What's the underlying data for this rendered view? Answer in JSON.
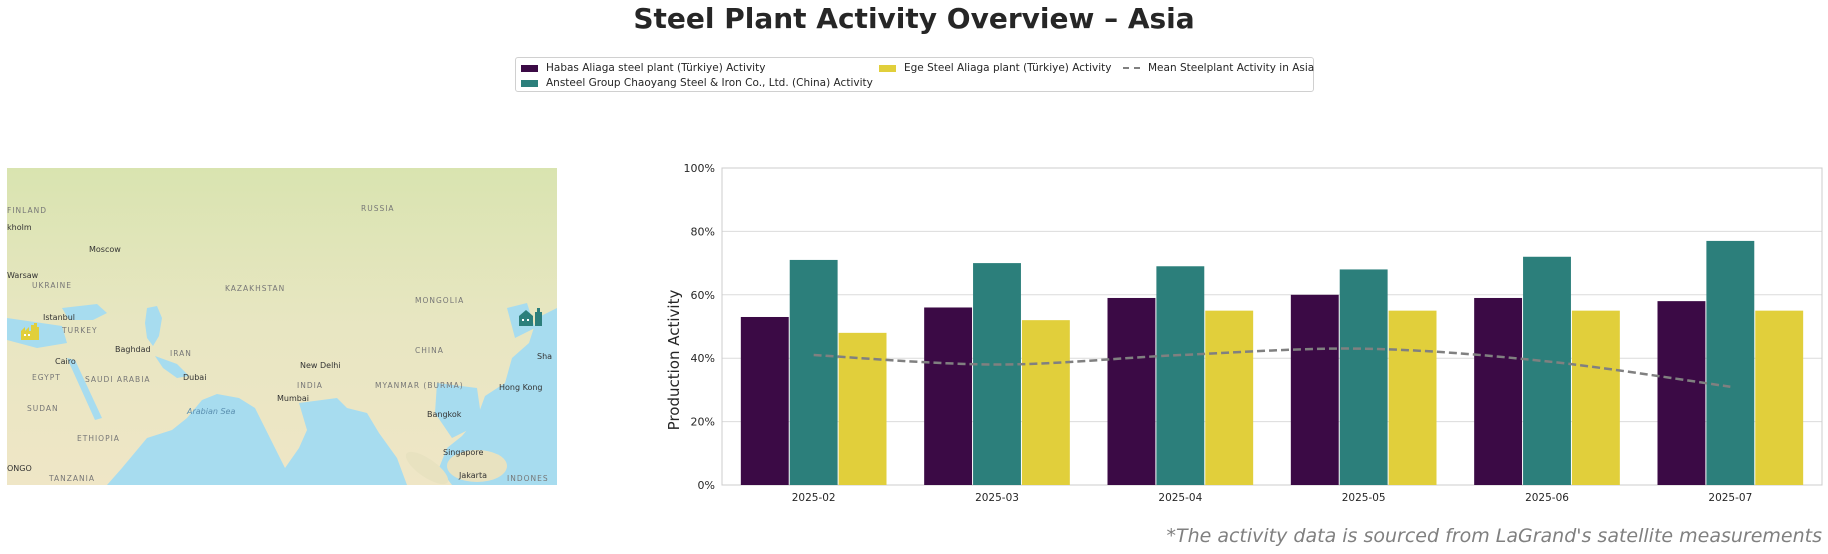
{
  "title": "Steel Plant Activity Overview – Asia",
  "footnote": "*The activity data is sourced from LaGrand's satellite measurements",
  "legend": {
    "habas": "Habas Aliaga steel plant (Türkiye) Activity",
    "ansteel": "Ansteel Group Chaoyang Steel & Iron Co., Ltd. (China) Activity",
    "ege": "Ege Steel Aliaga plant (Türkiye) Activity",
    "mean": "Mean Steelplant Activity in Asia"
  },
  "map": {
    "countries": [
      "FINLAND",
      "RUSSIA",
      "UKRAINE",
      "KAZAKHSTAN",
      "MONGOLIA",
      "TURKEY",
      "IRAN",
      "CHINA",
      "EGYPT",
      "SAUDI ARABIA",
      "INDIA",
      "MYANMAR (BURMA)",
      "SUDAN",
      "ETHIOPIA",
      "TANZANIA",
      "INDONES"
    ],
    "cities": [
      "kholm",
      "Moscow",
      "Warsaw",
      "Istanbul",
      "Baghdad",
      "Cairo",
      "Dubai",
      "New Delhi",
      "Mumbai",
      "Bangkok",
      "Hong Kong",
      "Singapore",
      "Jakarta",
      "Sha",
      "ONGO"
    ],
    "sea": "Arabian Sea",
    "markers": [
      {
        "name": "factory-marker-turkey",
        "color": "#e1cf3b"
      },
      {
        "name": "factory-marker-china",
        "color": "#2c7f7b"
      }
    ]
  },
  "colors": {
    "habas": "#3b0a45",
    "ansteel": "#2c7f7b",
    "ege": "#e1cf3b",
    "mean": "#808080",
    "grid": "#dcdcdc"
  },
  "chart_data": {
    "type": "bar",
    "categories": [
      "2025-02",
      "2025-03",
      "2025-04",
      "2025-05",
      "2025-06",
      "2025-07"
    ],
    "series": [
      {
        "name": "Habas Aliaga steel plant (Türkiye) Activity",
        "values": [
          53,
          56,
          59,
          60,
          59,
          58
        ]
      },
      {
        "name": "Ansteel Group Chaoyang Steel & Iron Co., Ltd. (China) Activity",
        "values": [
          71,
          70,
          69,
          68,
          72,
          77
        ]
      },
      {
        "name": "Ege Steel Aliaga plant (Türkiye) Activity",
        "values": [
          48,
          52,
          55,
          55,
          55,
          55
        ]
      },
      {
        "name": "Mean Steelplant Activity in Asia",
        "type": "line",
        "style": "dashed",
        "values": [
          41,
          38,
          41,
          43,
          39,
          31
        ]
      }
    ],
    "ylabel": "Production Activity",
    "xlabel": "",
    "ylim": [
      0,
      100
    ],
    "yticks": [
      "0%",
      "20%",
      "40%",
      "60%",
      "80%",
      "100%"
    ],
    "grid": true,
    "legend_position": "top-center"
  }
}
